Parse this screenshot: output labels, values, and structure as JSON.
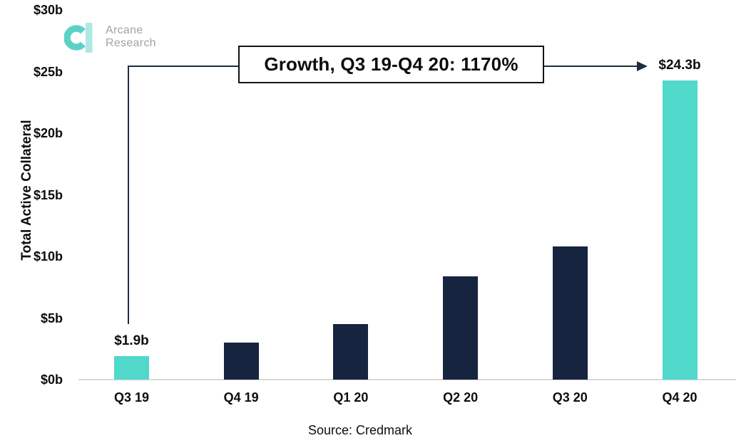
{
  "logo": {
    "line1": "Arcane",
    "line2": "Research"
  },
  "chart_data": {
    "type": "bar",
    "categories": [
      "Q3 19",
      "Q4 19",
      "Q1 20",
      "Q2 20",
      "Q3 20",
      "Q4 20"
    ],
    "values": [
      1.9,
      3.0,
      4.5,
      8.4,
      10.8,
      24.3
    ],
    "bar_labels": [
      "$1.9b",
      "",
      "",
      "",
      "",
      "$24.3b"
    ],
    "bar_color_keys": [
      "teal",
      "navy",
      "navy",
      "navy",
      "navy",
      "teal"
    ],
    "title": "",
    "xlabel": "",
    "ylabel": "Total Active Collateral",
    "ylim": [
      0,
      30
    ],
    "yticks": [
      0,
      5,
      10,
      15,
      20,
      25,
      30
    ],
    "ytick_labels": [
      "$0b",
      "$5b",
      "$10b",
      "$15b",
      "$20b",
      "$25b",
      "$30b"
    ],
    "grid": false,
    "legend": false,
    "annotation": "Growth, Q3 19-Q4 20: 1170%",
    "source": "Source: Credmark",
    "colors": {
      "teal": "#50d8cb",
      "navy": "#172440",
      "axis_line": "#d9d9d9",
      "connector": "#1e2c40",
      "text": "#0d0d0d",
      "logo_ring": "#5ed1c6",
      "logo_bar": "#aee8e2",
      "logo_text": "#9da3a8"
    }
  }
}
